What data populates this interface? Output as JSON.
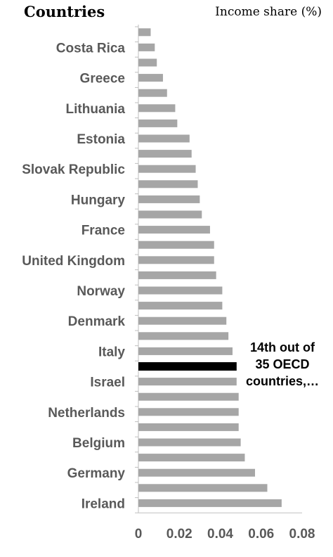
{
  "chart_data": {
    "type": "bar",
    "orientation": "horizontal",
    "title_left": "Countries",
    "title_right": "Income share (%)",
    "categories": [
      "",
      "Costa Rica",
      "",
      "Greece",
      "",
      "Lithuania",
      "",
      "Estonia",
      "",
      "Slovak Republic",
      "",
      "Hungary",
      "",
      "France",
      "",
      "United Kingdom",
      "",
      "Norway",
      "",
      "Denmark",
      "",
      "Italy",
      "",
      "Israel",
      "",
      "Netherlands",
      "",
      "Belgium",
      "",
      "Germany",
      "",
      "Ireland"
    ],
    "values": [
      0.006,
      0.008,
      0.009,
      0.012,
      0.014,
      0.018,
      0.019,
      0.025,
      0.026,
      0.028,
      0.029,
      0.03,
      0.031,
      0.035,
      0.037,
      0.037,
      0.038,
      0.041,
      0.041,
      0.043,
      0.044,
      0.046,
      0.048,
      0.048,
      0.049,
      0.049,
      0.049,
      0.05,
      0.052,
      0.057,
      0.063,
      0.07
    ],
    "highlight_index": 22,
    "highlight_annotation": [
      "14th out of",
      "35 OECD",
      "countries,…"
    ],
    "xlim": [
      0,
      0.08
    ],
    "xticks": [
      "0",
      "0.02",
      "0.04",
      "0.06",
      "0.08"
    ],
    "colors": {
      "bar": "#a6a6a6",
      "highlight": "#000000",
      "axis": "#bfbfbf",
      "label": "#595959"
    },
    "grid": false,
    "legend": "none"
  }
}
